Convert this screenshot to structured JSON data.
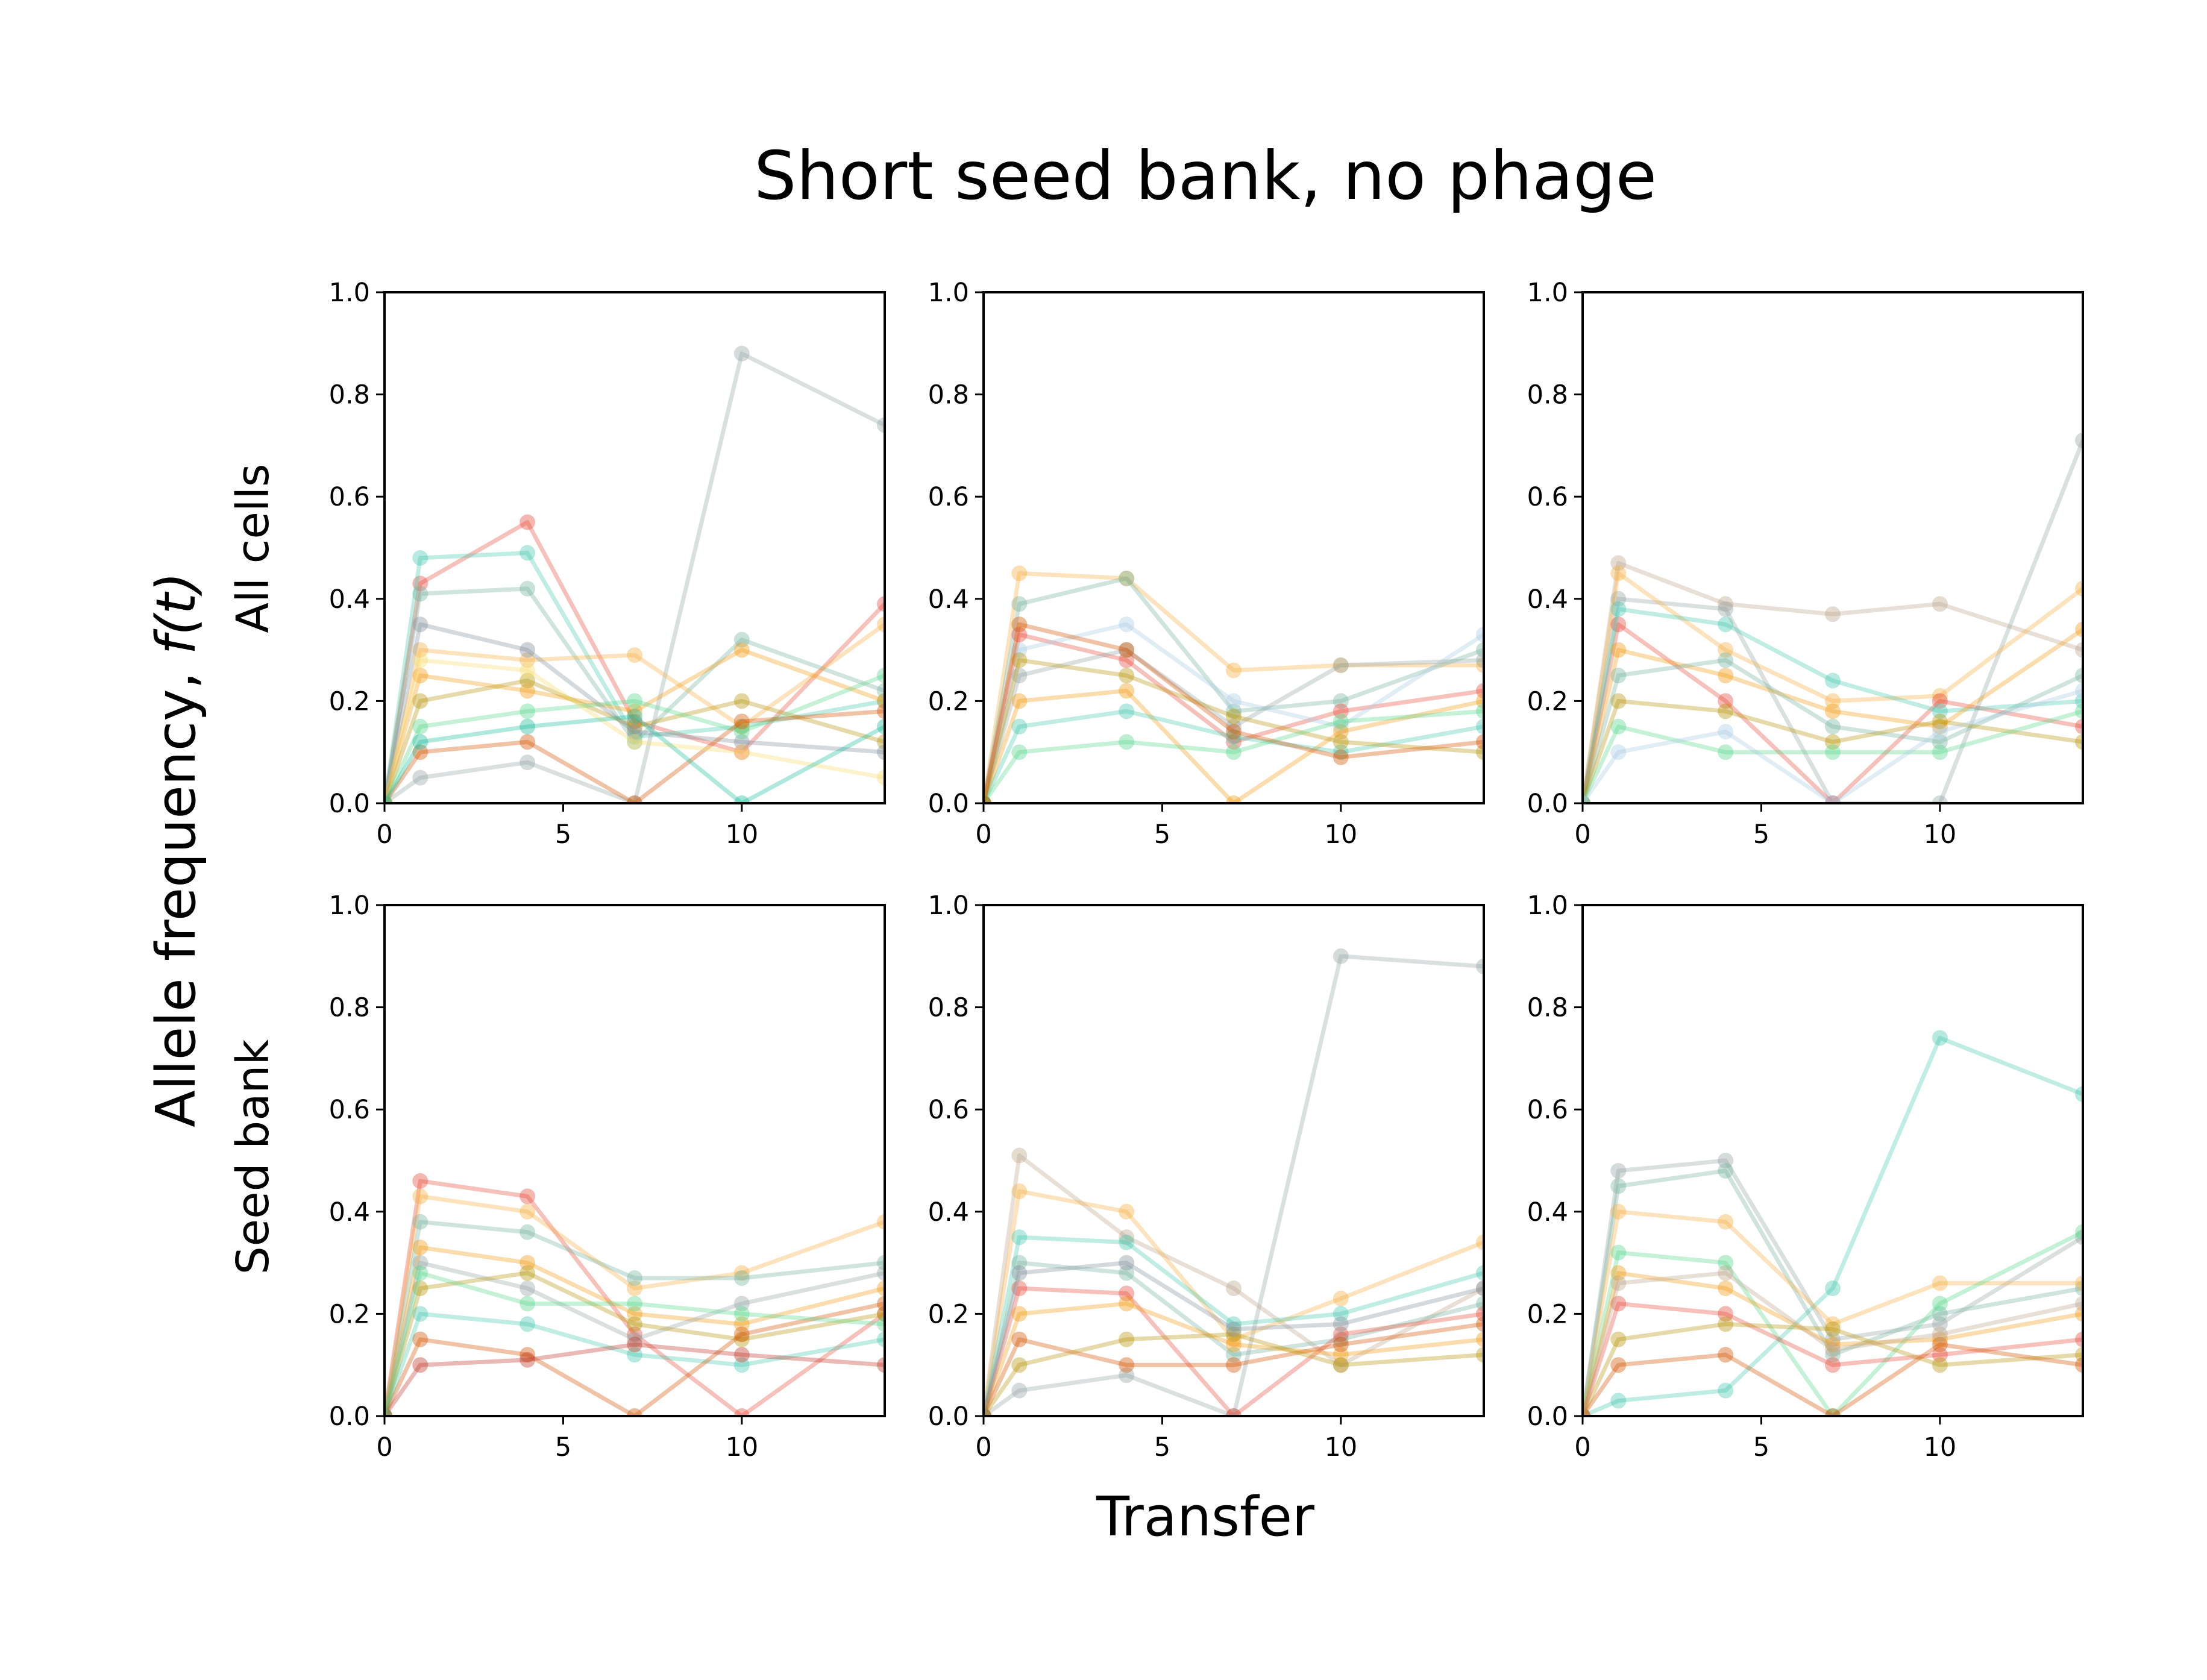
{
  "figure": {
    "title": "Short seed bank, no phage",
    "ylabel_prefix": "Allele frequency, ",
    "ylabel_math": "f(t)",
    "xlabel": "Transfer",
    "row_labels": [
      "All cells",
      "Seed bank"
    ]
  },
  "palette": [
    "#e74c3c",
    "#f39c12",
    "#f5b041",
    "#48c9b0",
    "#76b3a0",
    "#95a5a6",
    "#d35400",
    "#58d68d",
    "#b7950b",
    "#85929e",
    "#a9cce3",
    "#c0392b",
    "#1abc9c",
    "#f7dc6f",
    "#bca58b"
  ],
  "chart_data": [
    {
      "type": "line",
      "panel": "row1-col1",
      "row_label": "All cells",
      "xlim": [
        0,
        14
      ],
      "ylim": [
        0.0,
        1.0
      ],
      "xticks": [
        "0",
        "5",
        "10"
      ],
      "yticks": [
        "0.0",
        "0.2",
        "0.4",
        "0.6",
        "0.8",
        "1.0"
      ],
      "x": [
        0,
        1,
        4,
        7,
        10,
        14
      ],
      "series": [
        {
          "values": [
            0.0,
            0.05,
            0.08,
            0.0,
            0.88,
            0.74
          ],
          "color": "#95a5a6"
        },
        {
          "values": [
            0.0,
            0.43,
            0.55,
            0.16,
            0.1,
            0.39
          ],
          "color": "#e74c3c"
        },
        {
          "values": [
            0.0,
            0.48,
            0.49,
            0.13,
            0.15,
            0.2
          ],
          "color": "#48c9b0"
        },
        {
          "values": [
            0.0,
            0.41,
            0.42,
            0.12,
            0.32,
            0.22
          ],
          "color": "#76b3a0"
        },
        {
          "values": [
            0.0,
            0.3,
            0.28,
            0.29,
            0.15,
            0.35
          ],
          "color": "#f5b041"
        },
        {
          "values": [
            0.0,
            0.25,
            0.22,
            0.18,
            0.3,
            0.2
          ],
          "color": "#f39c12"
        },
        {
          "values": [
            0.0,
            0.2,
            0.24,
            0.15,
            0.2,
            0.12
          ],
          "color": "#b7950b"
        },
        {
          "values": [
            0.0,
            0.35,
            0.3,
            0.14,
            0.12,
            0.1
          ],
          "color": "#85929e"
        },
        {
          "values": [
            0.0,
            0.15,
            0.18,
            0.2,
            0.14,
            0.25
          ],
          "color": "#58d68d"
        },
        {
          "values": [
            0.0,
            0.1,
            0.12,
            0.0,
            0.16,
            0.18
          ],
          "color": "#d35400"
        },
        {
          "values": [
            0.0,
            0.28,
            0.26,
            0.12,
            0.1,
            0.05
          ],
          "color": "#f7dc6f"
        },
        {
          "values": [
            0.0,
            0.12,
            0.15,
            0.17,
            0.0,
            0.15
          ],
          "color": "#1abc9c"
        }
      ]
    },
    {
      "type": "line",
      "panel": "row1-col2",
      "row_label": "All cells",
      "xlim": [
        0,
        14
      ],
      "ylim": [
        0.0,
        1.0
      ],
      "xticks": [
        "0",
        "5",
        "10"
      ],
      "yticks": [
        "0.0",
        "0.2",
        "0.4",
        "0.6",
        "0.8",
        "1.0"
      ],
      "x": [
        0,
        1,
        4,
        7,
        10,
        14
      ],
      "series": [
        {
          "values": [
            0.0,
            0.45,
            0.44,
            0.26,
            0.27,
            0.27
          ],
          "color": "#f5b041"
        },
        {
          "values": [
            0.0,
            0.39,
            0.44,
            0.18,
            0.2,
            0.3
          ],
          "color": "#76b3a0"
        },
        {
          "values": [
            0.0,
            0.33,
            0.28,
            0.12,
            0.18,
            0.22
          ],
          "color": "#e74c3c"
        },
        {
          "values": [
            0.0,
            0.3,
            0.35,
            0.2,
            0.15,
            0.33
          ],
          "color": "#a9cce3"
        },
        {
          "values": [
            0.0,
            0.25,
            0.3,
            0.15,
            0.27,
            0.28
          ],
          "color": "#95a5a6"
        },
        {
          "values": [
            0.0,
            0.2,
            0.22,
            0.0,
            0.14,
            0.2
          ],
          "color": "#f39c12"
        },
        {
          "values": [
            0.0,
            0.15,
            0.18,
            0.13,
            0.1,
            0.15
          ],
          "color": "#48c9b0"
        },
        {
          "values": [
            0.0,
            0.28,
            0.25,
            0.17,
            0.12,
            0.1
          ],
          "color": "#b7950b"
        },
        {
          "values": [
            0.0,
            0.1,
            0.12,
            0.1,
            0.16,
            0.18
          ],
          "color": "#58d68d"
        },
        {
          "values": [
            0.0,
            0.35,
            0.3,
            0.14,
            0.09,
            0.12
          ],
          "color": "#d35400"
        }
      ]
    },
    {
      "type": "line",
      "panel": "row1-col3",
      "row_label": "All cells",
      "xlim": [
        0,
        14
      ],
      "ylim": [
        0.0,
        1.0
      ],
      "xticks": [
        "0",
        "5",
        "10"
      ],
      "yticks": [
        "0.0",
        "0.2",
        "0.4",
        "0.6",
        "0.8",
        "1.0"
      ],
      "x": [
        0,
        1,
        4,
        7,
        10,
        14
      ],
      "series": [
        {
          "values": [
            0.0,
            0.47,
            0.39,
            0.37,
            0.39,
            0.3
          ],
          "color": "#bca58b"
        },
        {
          "values": [
            0.0,
            0.4,
            0.38,
            0.0,
            0.0,
            0.71
          ],
          "color": "#95a5a6"
        },
        {
          "values": [
            0.0,
            0.45,
            0.3,
            0.2,
            0.21,
            0.42
          ],
          "color": "#f5b041"
        },
        {
          "values": [
            0.0,
            0.35,
            0.2,
            0.0,
            0.2,
            0.15
          ],
          "color": "#e74c3c"
        },
        {
          "values": [
            0.0,
            0.38,
            0.35,
            0.24,
            0.18,
            0.2
          ],
          "color": "#48c9b0"
        },
        {
          "values": [
            0.0,
            0.3,
            0.25,
            0.18,
            0.15,
            0.34
          ],
          "color": "#f39c12"
        },
        {
          "values": [
            0.0,
            0.25,
            0.28,
            0.15,
            0.12,
            0.25
          ],
          "color": "#76b3a0"
        },
        {
          "values": [
            0.0,
            0.2,
            0.18,
            0.12,
            0.16,
            0.12
          ],
          "color": "#b7950b"
        },
        {
          "values": [
            0.0,
            0.15,
            0.1,
            0.1,
            0.1,
            0.18
          ],
          "color": "#58d68d"
        },
        {
          "values": [
            0.0,
            0.1,
            0.14,
            0.0,
            0.14,
            0.22
          ],
          "color": "#a9cce3"
        }
      ]
    },
    {
      "type": "line",
      "panel": "row2-col1",
      "row_label": "Seed bank",
      "xlim": [
        0,
        14
      ],
      "ylim": [
        0.0,
        1.0
      ],
      "xticks": [
        "0",
        "5",
        "10"
      ],
      "yticks": [
        "0.0",
        "0.2",
        "0.4",
        "0.6",
        "0.8",
        "1.0"
      ],
      "x": [
        0,
        1,
        4,
        7,
        10,
        14
      ],
      "series": [
        {
          "values": [
            0.0,
            0.46,
            0.43,
            0.16,
            0.0,
            0.2
          ],
          "color": "#e74c3c"
        },
        {
          "values": [
            0.0,
            0.43,
            0.4,
            0.25,
            0.28,
            0.38
          ],
          "color": "#f5b041"
        },
        {
          "values": [
            0.0,
            0.38,
            0.36,
            0.27,
            0.27,
            0.3
          ],
          "color": "#76b3a0"
        },
        {
          "values": [
            0.0,
            0.33,
            0.3,
            0.2,
            0.18,
            0.25
          ],
          "color": "#f39c12"
        },
        {
          "values": [
            0.0,
            0.3,
            0.25,
            0.15,
            0.22,
            0.28
          ],
          "color": "#95a5a6"
        },
        {
          "values": [
            0.0,
            0.25,
            0.28,
            0.18,
            0.15,
            0.2
          ],
          "color": "#b7950b"
        },
        {
          "values": [
            0.0,
            0.2,
            0.18,
            0.12,
            0.1,
            0.15
          ],
          "color": "#48c9b0"
        },
        {
          "values": [
            0.0,
            0.15,
            0.12,
            0.0,
            0.16,
            0.22
          ],
          "color": "#d35400"
        },
        {
          "values": [
            0.0,
            0.1,
            0.11,
            0.14,
            0.12,
            0.1
          ],
          "color": "#c0392b"
        },
        {
          "values": [
            0.0,
            0.28,
            0.22,
            0.22,
            0.2,
            0.18
          ],
          "color": "#58d68d"
        }
      ]
    },
    {
      "type": "line",
      "panel": "row2-col2",
      "row_label": "Seed bank",
      "xlim": [
        0,
        14
      ],
      "ylim": [
        0.0,
        1.0
      ],
      "xticks": [
        "0",
        "5",
        "10"
      ],
      "yticks": [
        "0.0",
        "0.2",
        "0.4",
        "0.6",
        "0.8",
        "1.0"
      ],
      "x": [
        0,
        1,
        4,
        7,
        10,
        14
      ],
      "series": [
        {
          "values": [
            0.0,
            0.05,
            0.08,
            0.0,
            0.9,
            0.88
          ],
          "color": "#95a5a6"
        },
        {
          "values": [
            0.0,
            0.51,
            0.35,
            0.25,
            0.1,
            0.25
          ],
          "color": "#bca58b"
        },
        {
          "values": [
            0.0,
            0.44,
            0.4,
            0.15,
            0.23,
            0.34
          ],
          "color": "#f5b041"
        },
        {
          "values": [
            0.0,
            0.35,
            0.34,
            0.18,
            0.2,
            0.28
          ],
          "color": "#48c9b0"
        },
        {
          "values": [
            0.0,
            0.3,
            0.28,
            0.12,
            0.15,
            0.22
          ],
          "color": "#76b3a0"
        },
        {
          "values": [
            0.0,
            0.25,
            0.24,
            0.0,
            0.16,
            0.2
          ],
          "color": "#e74c3c"
        },
        {
          "values": [
            0.0,
            0.2,
            0.22,
            0.14,
            0.12,
            0.15
          ],
          "color": "#f39c12"
        },
        {
          "values": [
            0.0,
            0.15,
            0.1,
            0.1,
            0.14,
            0.18
          ],
          "color": "#d35400"
        },
        {
          "values": [
            0.0,
            0.1,
            0.15,
            0.16,
            0.1,
            0.12
          ],
          "color": "#b7950b"
        },
        {
          "values": [
            0.0,
            0.28,
            0.3,
            0.17,
            0.18,
            0.25
          ],
          "color": "#85929e"
        }
      ]
    },
    {
      "type": "line",
      "panel": "row2-col3",
      "row_label": "Seed bank",
      "xlim": [
        0,
        14
      ],
      "ylim": [
        0.0,
        1.0
      ],
      "xticks": [
        "0",
        "5",
        "10"
      ],
      "yticks": [
        "0.0",
        "0.2",
        "0.4",
        "0.6",
        "0.8",
        "1.0"
      ],
      "x": [
        0,
        1,
        4,
        7,
        10,
        14
      ],
      "series": [
        {
          "values": [
            0.0,
            0.03,
            0.05,
            0.25,
            0.74,
            0.63
          ],
          "color": "#48c9b0"
        },
        {
          "values": [
            0.0,
            0.48,
            0.5,
            0.15,
            0.18,
            0.35
          ],
          "color": "#95a5a6"
        },
        {
          "values": [
            0.0,
            0.45,
            0.48,
            0.12,
            0.2,
            0.25
          ],
          "color": "#76b3a0"
        },
        {
          "values": [
            0.0,
            0.4,
            0.38,
            0.18,
            0.26,
            0.26
          ],
          "color": "#f5b041"
        },
        {
          "values": [
            0.0,
            0.32,
            0.3,
            0.0,
            0.22,
            0.36
          ],
          "color": "#58d68d"
        },
        {
          "values": [
            0.0,
            0.28,
            0.25,
            0.14,
            0.15,
            0.2
          ],
          "color": "#f39c12"
        },
        {
          "values": [
            0.0,
            0.22,
            0.2,
            0.1,
            0.12,
            0.15
          ],
          "color": "#e74c3c"
        },
        {
          "values": [
            0.0,
            0.15,
            0.18,
            0.17,
            0.1,
            0.12
          ],
          "color": "#b7950b"
        },
        {
          "values": [
            0.0,
            0.1,
            0.12,
            0.0,
            0.14,
            0.1
          ],
          "color": "#d35400"
        },
        {
          "values": [
            0.0,
            0.26,
            0.28,
            0.13,
            0.16,
            0.22
          ],
          "color": "#bca58b"
        }
      ]
    }
  ]
}
